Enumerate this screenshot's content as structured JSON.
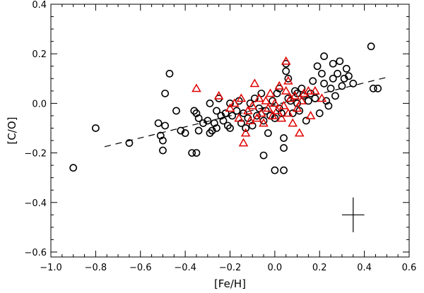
{
  "chart_data": {
    "type": "scatter",
    "xlabel": "[Fe/H]",
    "ylabel": "[C/O]",
    "xlim": [
      -1.0,
      0.6
    ],
    "ylim": [
      -0.62,
      0.4
    ],
    "x_ticks": [
      -1.0,
      -0.8,
      -0.6,
      -0.4,
      -0.2,
      0.0,
      0.2,
      0.4,
      0.6
    ],
    "x_tick_labels": [
      "−1.0",
      "−0.8",
      "−0.6",
      "−0.4",
      "−0.2",
      "0.0",
      "0.2",
      "0.4",
      "0.6"
    ],
    "y_ticks": [
      -0.6,
      -0.4,
      -0.2,
      0.0,
      0.2,
      0.4
    ],
    "y_tick_labels": [
      "−0.6",
      "−0.4",
      "−0.2",
      "0.0",
      "0.2",
      "0.4"
    ],
    "grid": false,
    "series": [
      {
        "marker": "circle",
        "color": "#000000",
        "points": [
          [
            -0.9,
            -0.26
          ],
          [
            -0.8,
            -0.1
          ],
          [
            -0.65,
            -0.16
          ],
          [
            -0.52,
            -0.08
          ],
          [
            -0.51,
            -0.13
          ],
          [
            -0.5,
            -0.15
          ],
          [
            -0.5,
            -0.19
          ],
          [
            -0.49,
            -0.09
          ],
          [
            -0.49,
            0.04
          ],
          [
            -0.47,
            0.12
          ],
          [
            -0.44,
            -0.03
          ],
          [
            -0.42,
            -0.11
          ],
          [
            -0.4,
            -0.12
          ],
          [
            -0.37,
            -0.2
          ],
          [
            -0.35,
            -0.2
          ],
          [
            -0.36,
            -0.03
          ],
          [
            -0.35,
            -0.04
          ],
          [
            -0.34,
            -0.06
          ],
          [
            -0.34,
            -0.11
          ],
          [
            -0.32,
            -0.08
          ],
          [
            -0.3,
            -0.07
          ],
          [
            -0.29,
            -0.12
          ],
          [
            -0.29,
            0.0
          ],
          [
            -0.28,
            -0.11
          ],
          [
            -0.27,
            -0.08
          ],
          [
            -0.26,
            -0.03
          ],
          [
            -0.26,
            -0.1
          ],
          [
            -0.25,
            0.02
          ],
          [
            -0.24,
            -0.05
          ],
          [
            -0.23,
            -0.07
          ],
          [
            -0.22,
            -0.04
          ],
          [
            -0.21,
            -0.09
          ],
          [
            -0.2,
            0.0
          ],
          [
            -0.2,
            -0.1
          ],
          [
            -0.19,
            -0.05
          ],
          [
            -0.17,
            -0.03
          ],
          [
            -0.16,
            0.01
          ],
          [
            -0.15,
            -0.08
          ],
          [
            -0.14,
            -0.04
          ],
          [
            -0.13,
            -0.1
          ],
          [
            -0.12,
            -0.06
          ],
          [
            -0.11,
            0.0
          ],
          [
            -0.1,
            -0.09
          ],
          [
            -0.08,
            -0.05
          ],
          [
            -0.07,
            -0.02
          ],
          [
            -0.06,
            0.04
          ],
          [
            -0.05,
            -0.07
          ],
          [
            -0.04,
            -0.03
          ],
          [
            -0.03,
            -0.12
          ],
          [
            -0.02,
            -0.05
          ],
          [
            -0.01,
            0.01
          ],
          [
            0.0,
            -0.06
          ],
          [
            0.01,
            0.04
          ],
          [
            0.02,
            -0.02
          ],
          [
            0.03,
            -0.04
          ],
          [
            0.04,
            -0.18
          ],
          [
            0.04,
            -0.14
          ],
          [
            0.05,
            0.16
          ],
          [
            0.05,
            0.13
          ],
          [
            0.06,
            0.1
          ],
          [
            0.06,
            0.02
          ],
          [
            0.07,
            0.01
          ],
          [
            0.08,
            -0.04
          ],
          [
            0.09,
            0.05
          ],
          [
            0.1,
            0.0
          ],
          [
            0.11,
            -0.03
          ],
          [
            0.12,
            0.06
          ],
          [
            0.13,
            0.03
          ],
          [
            0.14,
            -0.07
          ],
          [
            0.15,
            0.01
          ],
          [
            0.16,
            0.04
          ],
          [
            0.17,
            0.09
          ],
          [
            0.18,
            0.02
          ],
          [
            0.19,
            0.15
          ],
          [
            0.2,
            -0.04
          ],
          [
            0.21,
            0.12
          ],
          [
            0.22,
            0.08
          ],
          [
            0.22,
            0.19
          ],
          [
            0.23,
            0.01
          ],
          [
            0.24,
            -0.01
          ],
          [
            0.25,
            0.06
          ],
          [
            0.26,
            0.1
          ],
          [
            0.26,
            0.16
          ],
          [
            0.27,
            0.03
          ],
          [
            0.28,
            0.12
          ],
          [
            0.29,
            0.17
          ],
          [
            0.3,
            0.07
          ],
          [
            0.31,
            0.1
          ],
          [
            0.32,
            0.14
          ],
          [
            0.33,
            0.11
          ],
          [
            0.35,
            0.08
          ],
          [
            0.43,
            0.23
          ],
          [
            0.44,
            0.06
          ],
          [
            0.46,
            0.06
          ],
          [
            -0.05,
            -0.21
          ],
          [
            0.0,
            -0.27
          ],
          [
            0.04,
            -0.27
          ],
          [
            -0.09,
            0.02
          ],
          [
            0.02,
            0.06
          ],
          [
            0.1,
            0.04
          ]
        ]
      },
      {
        "marker": "triangle",
        "color": "#e00000",
        "points": [
          [
            -0.35,
            0.06
          ],
          [
            -0.25,
            0.03
          ],
          [
            -0.2,
            -0.02
          ],
          [
            -0.18,
            0.0
          ],
          [
            -0.16,
            -0.06
          ],
          [
            -0.14,
            -0.16
          ],
          [
            -0.13,
            -0.12
          ],
          [
            -0.12,
            -0.03
          ],
          [
            -0.1,
            -0.01
          ],
          [
            -0.09,
            0.08
          ],
          [
            -0.08,
            -0.06
          ],
          [
            -0.07,
            0.02
          ],
          [
            -0.06,
            -0.04
          ],
          [
            -0.05,
            -0.08
          ],
          [
            -0.04,
            0.01
          ],
          [
            -0.03,
            -0.02
          ],
          [
            -0.02,
            0.04
          ],
          [
            -0.01,
            -0.05
          ],
          [
            0.0,
            0.0
          ],
          [
            0.01,
            -0.03
          ],
          [
            0.02,
            0.07
          ],
          [
            0.03,
            -0.06
          ],
          [
            0.04,
            -0.01
          ],
          [
            0.05,
            0.17
          ],
          [
            0.05,
            0.05
          ],
          [
            0.06,
            -0.04
          ],
          [
            0.07,
            0.02
          ],
          [
            0.08,
            -0.08
          ],
          [
            0.09,
            0.03
          ],
          [
            0.1,
            -0.02
          ],
          [
            0.11,
            -0.12
          ],
          [
            0.12,
            0.01
          ],
          [
            0.13,
            0.04
          ],
          [
            0.15,
            0.05
          ],
          [
            0.16,
            -0.05
          ],
          [
            0.18,
            0.05
          ],
          [
            0.21,
            0.02
          ],
          [
            -0.15,
            0.02
          ],
          [
            -0.11,
            -0.07
          ],
          [
            0.06,
            0.09
          ]
        ]
      }
    ],
    "trend_line": {
      "style": "dashed",
      "x": [
        -0.76,
        0.5
      ],
      "y": [
        -0.175,
        0.105
      ]
    },
    "error_bar": {
      "x": 0.35,
      "y": -0.45,
      "xerr": 0.05,
      "yerr": 0.07
    }
  }
}
